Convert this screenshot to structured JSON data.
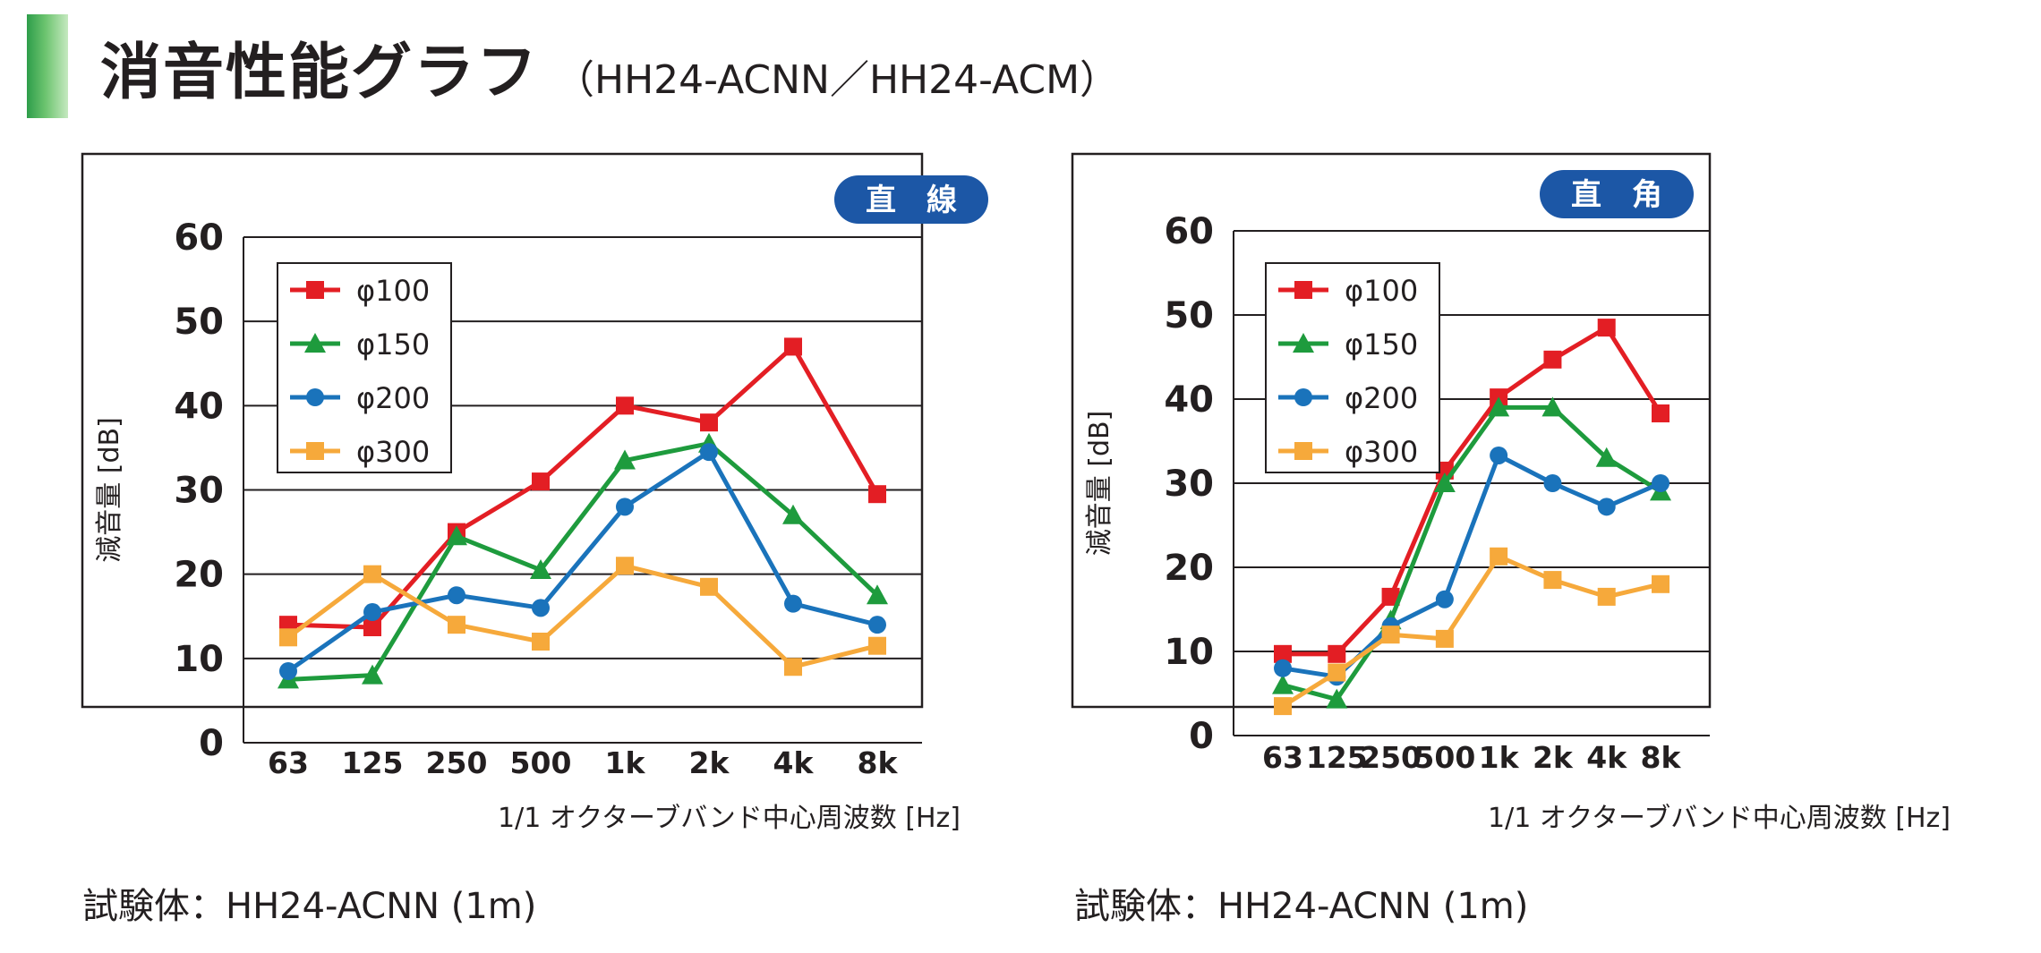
{
  "header": {
    "title": "消音性能グラフ",
    "subtitle": "（HH24-ACNN／HH24-ACM）",
    "accent_color": "#3aa84f"
  },
  "chart_data": [
    {
      "type": "line",
      "badge": "直　線",
      "categories": [
        "63",
        "125",
        "250",
        "500",
        "1k",
        "2k",
        "4k",
        "8k"
      ],
      "series": [
        {
          "name": "φ100",
          "marker": "square",
          "color": "#e31e24",
          "values": [
            14,
            13.7,
            25,
            31,
            40,
            38,
            47,
            29.5
          ]
        },
        {
          "name": "φ150",
          "marker": "triangle",
          "color": "#1e9b3d",
          "values": [
            7.5,
            8,
            24.5,
            20.5,
            33.5,
            35.5,
            27,
            17.5
          ]
        },
        {
          "name": "φ200",
          "marker": "circle",
          "color": "#1a73bb",
          "values": [
            8.5,
            15.5,
            17.5,
            16,
            28,
            34.5,
            16.5,
            14
          ]
        },
        {
          "name": "φ300",
          "marker": "square",
          "color": "#f6a93b",
          "values": [
            12.5,
            20,
            14,
            12,
            21,
            18.5,
            9,
            11.5
          ]
        }
      ],
      "title": "",
      "xlabel": "1/1 オクターブバンド中心周波数 [Hz]",
      "ylabel": "減音量 [dB]",
      "yticks": [
        "0",
        "10",
        "20",
        "30",
        "40",
        "50",
        "60"
      ],
      "ylim": [
        0,
        60
      ],
      "grid": "horizontal",
      "legend": "top-left",
      "caption": "試験体：HH24-ACNN (1m)",
      "badge_color": "#1c57a6"
    },
    {
      "type": "line",
      "badge": "直　角",
      "categories": [
        "63",
        "125",
        "250",
        "500",
        "1k",
        "2k",
        "4k",
        "8k"
      ],
      "series": [
        {
          "name": "φ100",
          "marker": "square",
          "color": "#e31e24",
          "values": [
            9.7,
            9.7,
            16.5,
            31.5,
            40.2,
            44.7,
            48.5,
            38.3
          ]
        },
        {
          "name": "φ150",
          "marker": "triangle",
          "color": "#1e9b3d",
          "values": [
            6,
            4.3,
            13.7,
            30,
            39,
            39,
            33,
            29
          ]
        },
        {
          "name": "φ200",
          "marker": "circle",
          "color": "#1a73bb",
          "values": [
            8,
            7,
            13,
            16.2,
            33.3,
            30,
            27.2,
            30
          ]
        },
        {
          "name": "φ300",
          "marker": "square",
          "color": "#f6a93b",
          "values": [
            3.5,
            7.5,
            12,
            11.5,
            21.3,
            18.5,
            16.5,
            18
          ]
        }
      ],
      "title": "",
      "xlabel": "1/1 オクターブバンド中心周波数 [Hz]",
      "ylabel": "減音量 [dB]",
      "yticks": [
        "0",
        "10",
        "20",
        "30",
        "40",
        "50",
        "60"
      ],
      "ylim": [
        0,
        60
      ],
      "grid": "horizontal",
      "legend": "top-left",
      "caption": "試験体：HH24-ACNN (1m)",
      "badge_color": "#1c57a6"
    }
  ]
}
